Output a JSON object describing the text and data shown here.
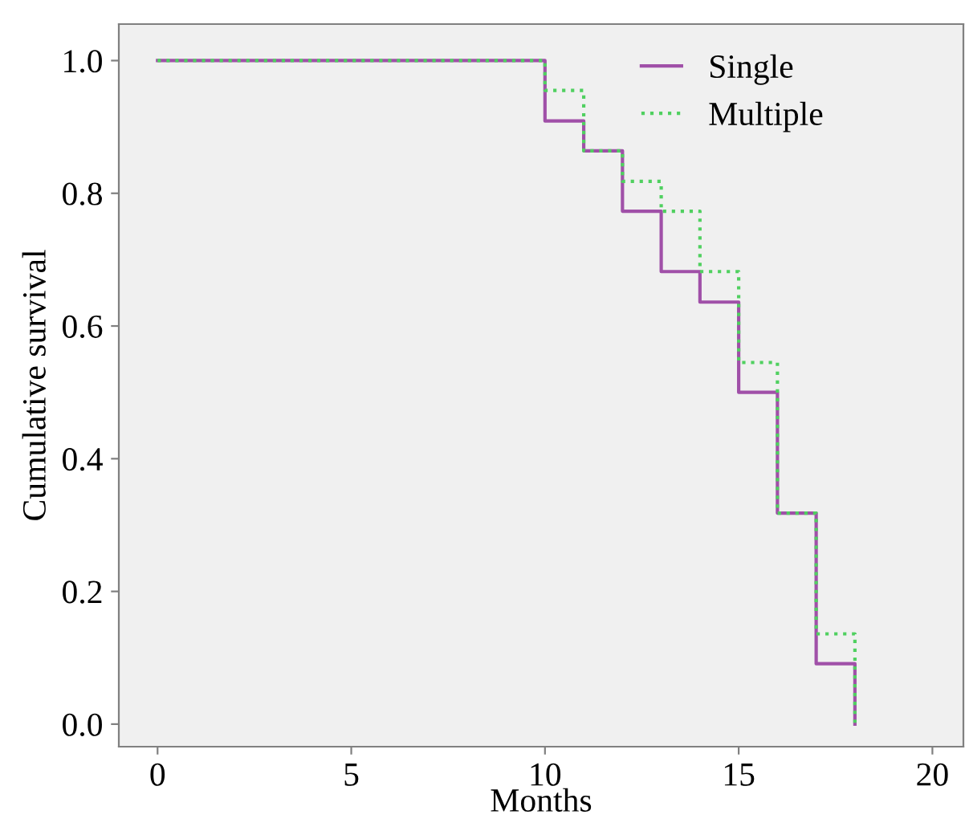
{
  "chart_data": {
    "type": "step",
    "xlabel": "Months",
    "ylabel": "Cumulative survival",
    "x": [
      0,
      10,
      11,
      12,
      13,
      14,
      15,
      16,
      17,
      18
    ],
    "series": [
      {
        "name": "Single",
        "color": "#a050a8",
        "line_style": "solid",
        "values": [
          1.0,
          0.909,
          0.864,
          0.773,
          0.682,
          0.636,
          0.5,
          0.318,
          0.091,
          0.0
        ]
      },
      {
        "name": "Multiple",
        "color": "#50d060",
        "line_style": "dotted",
        "values": [
          1.0,
          0.955,
          0.864,
          0.818,
          0.773,
          0.682,
          0.545,
          0.318,
          0.136,
          0.0
        ]
      }
    ],
    "xlim": [
      -1,
      20.8
    ],
    "ylim": [
      -0.034,
      1.055
    ],
    "xticks": [
      0,
      5,
      10,
      15,
      20
    ],
    "yticks": [
      {
        "value": 0,
        "label": "0.0"
      },
      {
        "value": 0.2,
        "label": "0.2"
      },
      {
        "value": 0.4,
        "label": "0.4"
      },
      {
        "value": 0.6,
        "label": "0.6"
      },
      {
        "value": 0.8,
        "label": "0.8"
      },
      {
        "value": 1.0,
        "label": "1.0"
      }
    ],
    "grid": false,
    "legend": "top right"
  }
}
